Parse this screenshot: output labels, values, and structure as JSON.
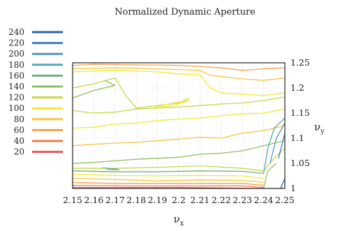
{
  "chart_data": {
    "type": "contour",
    "title": "Normalized Dynamic Aperture",
    "xlabel": "ν",
    "xlabel_sub": "x",
    "ylabel": "ν",
    "ylabel_sub": "y",
    "xlim": [
      2.15,
      2.25
    ],
    "ylim": [
      1.0,
      1.25
    ],
    "x_ticks": [
      "2.15",
      "2.16",
      "2.17",
      "2.18",
      "2.19",
      "2.2",
      "2.21",
      "2.22",
      "2.23",
      "2.24",
      "2.25"
    ],
    "y_ticks": [
      "1",
      "1.05",
      "1.1",
      "1.15",
      "1.2",
      "1.25"
    ],
    "x_tick_values": [
      2.15,
      2.16,
      2.17,
      2.18,
      2.19,
      2.2,
      2.21,
      2.22,
      2.23,
      2.24,
      2.25
    ],
    "y_tick_values": [
      1.0,
      1.05,
      1.1,
      1.15,
      1.2,
      1.25
    ],
    "grid": true,
    "legend_position": "left",
    "levels": [
      {
        "label": "240",
        "value": 240,
        "color": "#2f5fb0"
      },
      {
        "label": "220",
        "value": 220,
        "color": "#3c7cc4"
      },
      {
        "label": "200",
        "value": 200,
        "color": "#4b9ac4"
      },
      {
        "label": "180",
        "value": 180,
        "color": "#5aa8a8"
      },
      {
        "label": "160",
        "value": 160,
        "color": "#6fae86"
      },
      {
        "label": "140",
        "value": 140,
        "color": "#8fbe60"
      },
      {
        "label": "120",
        "value": 120,
        "color": "#c6d845"
      },
      {
        "label": "100",
        "value": 100,
        "color": "#f2ea2c"
      },
      {
        "label": "80",
        "value": 80,
        "color": "#f8c43c"
      },
      {
        "label": "60",
        "value": 60,
        "color": "#f5a34a"
      },
      {
        "label": "40",
        "value": 40,
        "color": "#ef7a50"
      },
      {
        "label": "20",
        "value": 20,
        "color": "#e8555c"
      }
    ],
    "contours": [
      {
        "level": 60,
        "points": [
          [
            2.15,
            1.245
          ],
          [
            2.16,
            1.247
          ],
          [
            2.18,
            1.246
          ],
          [
            2.2,
            1.245
          ],
          [
            2.22,
            1.24
          ],
          [
            2.23,
            1.235
          ],
          [
            2.24,
            1.238
          ],
          [
            2.25,
            1.24
          ]
        ]
      },
      {
        "level": 80,
        "points": [
          [
            2.15,
            1.238
          ],
          [
            2.17,
            1.24
          ],
          [
            2.19,
            1.238
          ],
          [
            2.21,
            1.235
          ],
          [
            2.215,
            1.225
          ],
          [
            2.23,
            1.218
          ],
          [
            2.24,
            1.215
          ],
          [
            2.25,
            1.22
          ]
        ]
      },
      {
        "level": 100,
        "points": [
          [
            2.15,
            1.232
          ],
          [
            2.17,
            1.235
          ],
          [
            2.19,
            1.232
          ],
          [
            2.2,
            1.228
          ],
          [
            2.21,
            1.226
          ],
          [
            2.215,
            1.2
          ],
          [
            2.22,
            1.19
          ],
          [
            2.24,
            1.185
          ],
          [
            2.25,
            1.19
          ]
        ]
      },
      {
        "level": 120,
        "points": [
          [
            2.15,
            1.155
          ],
          [
            2.16,
            1.15
          ],
          [
            2.17,
            1.152
          ],
          [
            2.18,
            1.158
          ],
          [
            2.19,
            1.16
          ],
          [
            2.2,
            1.162
          ],
          [
            2.21,
            1.165
          ],
          [
            2.22,
            1.168
          ],
          [
            2.23,
            1.17
          ],
          [
            2.24,
            1.175
          ],
          [
            2.25,
            1.182
          ]
        ]
      },
      {
        "level": 100,
        "points": [
          [
            2.15,
            1.12
          ],
          [
            2.16,
            1.122
          ],
          [
            2.17,
            1.128
          ],
          [
            2.18,
            1.13
          ],
          [
            2.19,
            1.135
          ],
          [
            2.2,
            1.138
          ],
          [
            2.21,
            1.14
          ],
          [
            2.22,
            1.145
          ],
          [
            2.23,
            1.148
          ],
          [
            2.24,
            1.15
          ],
          [
            2.25,
            1.158
          ]
        ]
      },
      {
        "level": 80,
        "points": [
          [
            2.15,
            1.085
          ],
          [
            2.16,
            1.088
          ],
          [
            2.18,
            1.092
          ],
          [
            2.2,
            1.098
          ],
          [
            2.21,
            1.102
          ],
          [
            2.22,
            1.1
          ],
          [
            2.23,
            1.11
          ],
          [
            2.24,
            1.115
          ],
          [
            2.25,
            1.125
          ]
        ]
      },
      {
        "level": 120,
        "points": [
          [
            2.15,
            1.2
          ],
          [
            2.16,
            1.208
          ],
          [
            2.17,
            1.22
          ],
          [
            2.175,
            1.185
          ],
          [
            2.18,
            1.16
          ],
          [
            2.19,
            1.165
          ],
          [
            2.2,
            1.17
          ],
          [
            2.205,
            1.18
          ]
        ]
      },
      {
        "level": 100,
        "points": [
          [
            2.188,
            1.16
          ],
          [
            2.195,
            1.168
          ],
          [
            2.2,
            1.172
          ],
          [
            2.205,
            1.175
          ],
          [
            2.198,
            1.166
          ],
          [
            2.19,
            1.16
          ]
        ]
      },
      {
        "level": 140,
        "points": [
          [
            2.15,
            1.18
          ],
          [
            2.16,
            1.195
          ],
          [
            2.17,
            1.205
          ],
          [
            2.165,
            1.215
          ]
        ]
      },
      {
        "level": 140,
        "points": [
          [
            2.15,
            1.05
          ],
          [
            2.16,
            1.052
          ],
          [
            2.18,
            1.058
          ],
          [
            2.2,
            1.062
          ],
          [
            2.21,
            1.068
          ],
          [
            2.22,
            1.07
          ],
          [
            2.23,
            1.075
          ],
          [
            2.24,
            1.085
          ],
          [
            2.25,
            1.095
          ]
        ]
      },
      {
        "level": 120,
        "points": [
          [
            2.15,
            1.04
          ],
          [
            2.17,
            1.04
          ],
          [
            2.19,
            1.042
          ],
          [
            2.21,
            1.045
          ],
          [
            2.23,
            1.04
          ],
          [
            2.24,
            1.035
          ],
          [
            2.245,
            1.06
          ],
          [
            2.25,
            1.08
          ]
        ]
      },
      {
        "level": 160,
        "points": [
          [
            2.164,
            1.041
          ],
          [
            2.17,
            1.039
          ],
          [
            2.172,
            1.037
          ],
          [
            2.166,
            1.038
          ]
        ]
      },
      {
        "level": 160,
        "points": [
          [
            2.15,
            1.035
          ],
          [
            2.17,
            1.033
          ],
          [
            2.19,
            1.033
          ],
          [
            2.21,
            1.035
          ],
          [
            2.23,
            1.034
          ],
          [
            2.24,
            1.03
          ]
        ]
      },
      {
        "level": 180,
        "points": [
          [
            2.24,
            1.03
          ],
          [
            2.242,
            1.08
          ],
          [
            2.245,
            1.12
          ],
          [
            2.25,
            1.14
          ]
        ]
      },
      {
        "level": 200,
        "points": [
          [
            2.243,
            1.05
          ],
          [
            2.246,
            1.1
          ],
          [
            2.25,
            1.13
          ]
        ]
      },
      {
        "level": 220,
        "points": [
          [
            2.247,
            1.06
          ],
          [
            2.25,
            1.11
          ]
        ]
      },
      {
        "level": 240,
        "points": [
          [
            2.248,
            1.0
          ],
          [
            2.25,
            1.02
          ]
        ]
      },
      {
        "level": 140,
        "points": [
          [
            2.24,
            1.0
          ],
          [
            2.242,
            1.035
          ],
          [
            2.246,
            1.05
          ]
        ]
      },
      {
        "level": 100,
        "points": [
          [
            2.15,
            1.028
          ],
          [
            2.17,
            1.026
          ],
          [
            2.19,
            1.025
          ],
          [
            2.21,
            1.026
          ],
          [
            2.23,
            1.025
          ],
          [
            2.24,
            1.02
          ]
        ]
      },
      {
        "level": 80,
        "points": [
          [
            2.15,
            1.02
          ],
          [
            2.17,
            1.018
          ],
          [
            2.19,
            1.015
          ],
          [
            2.21,
            1.017
          ],
          [
            2.23,
            1.016
          ],
          [
            2.24,
            1.012
          ]
        ]
      },
      {
        "level": 60,
        "points": [
          [
            2.15,
            1.012
          ],
          [
            2.17,
            1.01
          ],
          [
            2.19,
            1.01
          ],
          [
            2.21,
            1.01
          ],
          [
            2.23,
            1.01
          ],
          [
            2.24,
            1.006
          ]
        ]
      },
      {
        "level": 40,
        "points": [
          [
            2.15,
            1.006
          ],
          [
            2.18,
            1.005
          ],
          [
            2.2,
            1.005
          ],
          [
            2.23,
            1.005
          ],
          [
            2.24,
            1.002
          ]
        ]
      },
      {
        "level": 20,
        "points": [
          [
            2.15,
            1.002
          ],
          [
            2.2,
            1.002
          ],
          [
            2.24,
            1.0
          ]
        ]
      }
    ]
  }
}
